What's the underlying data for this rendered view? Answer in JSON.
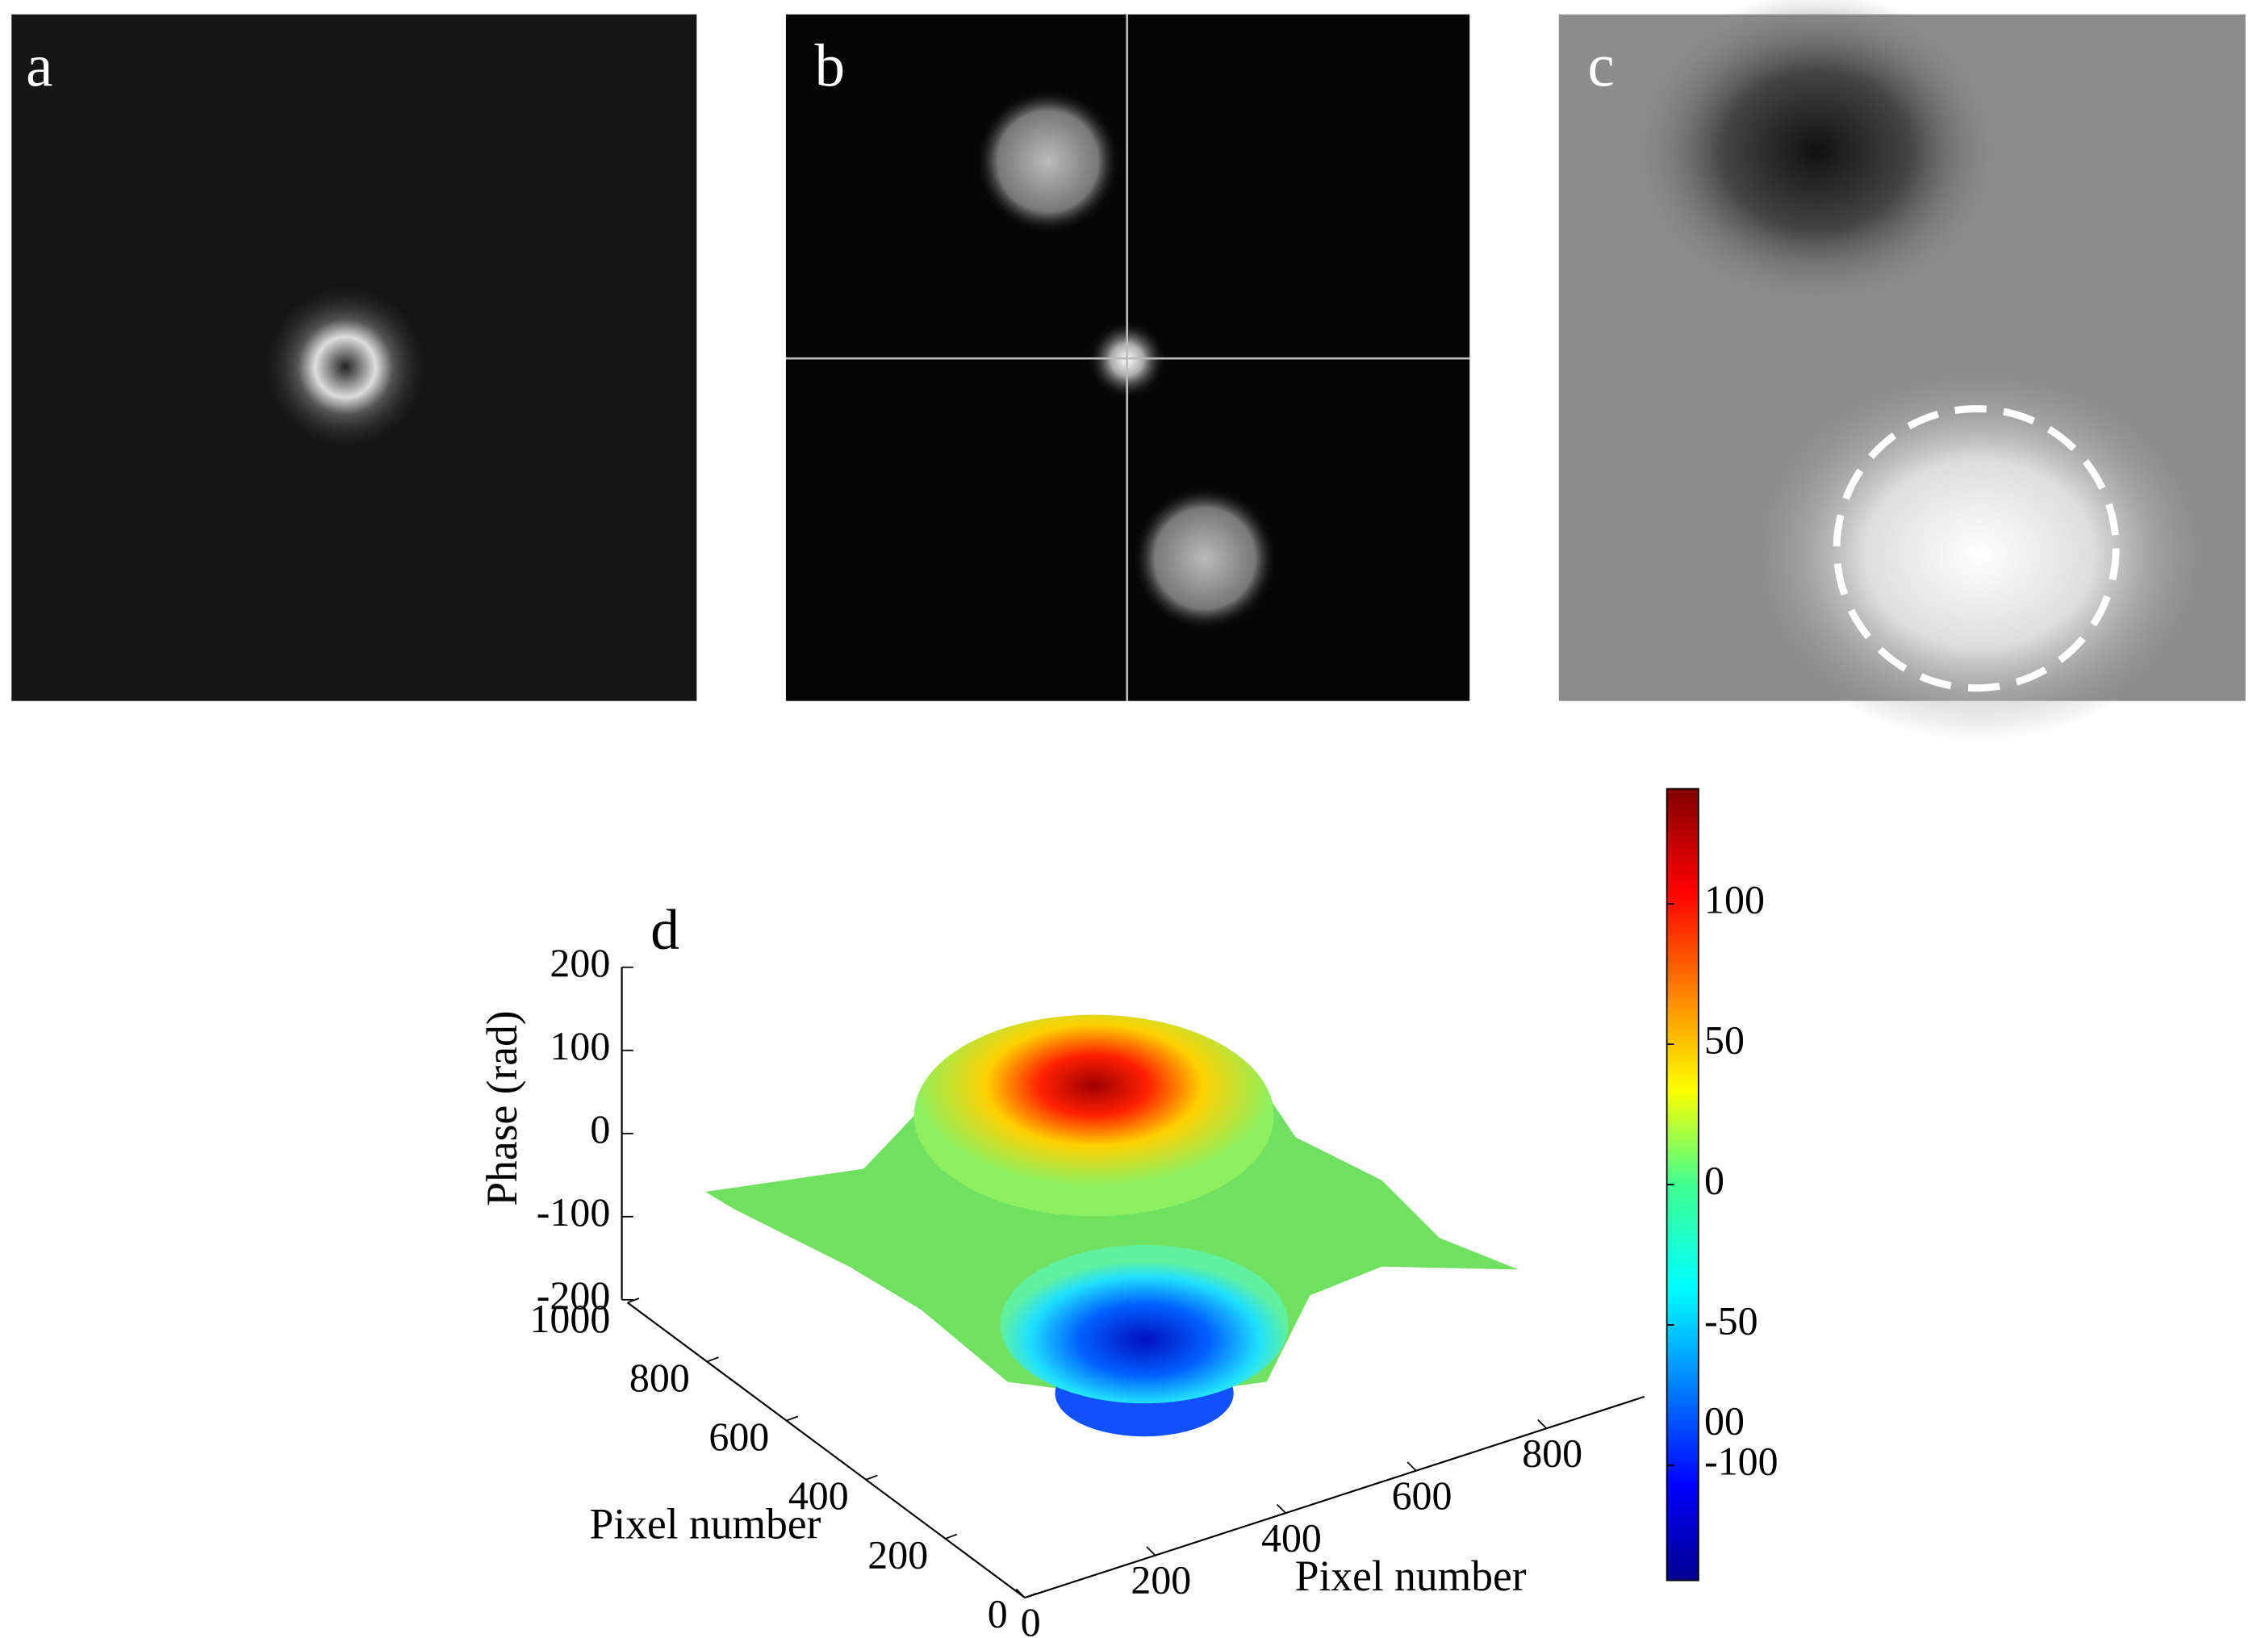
{
  "panels": [
    {
      "label": "a"
    },
    {
      "label": "b"
    },
    {
      "label": "c"
    }
  ],
  "chart_data": {
    "type": "surface3d",
    "label": "d",
    "zlabel": "Phase (rad)",
    "xlabel": "Pixel number",
    "ylabel": "Pixel number",
    "xlim": [
      0,
      1000
    ],
    "xticks": [
      0,
      200,
      400,
      600,
      800
    ],
    "ylim": [
      0,
      1000
    ],
    "yticks": [
      0,
      200,
      400,
      600,
      800,
      1000
    ],
    "zlim": [
      -200,
      200
    ],
    "zticks": [
      -200,
      -100,
      0,
      100,
      200
    ],
    "colorbar": {
      "lim": [
        -141,
        141
      ],
      "ticks": [
        -100,
        -50,
        0,
        50,
        100
      ],
      "annotation": "00",
      "colormap": "jet"
    }
  }
}
